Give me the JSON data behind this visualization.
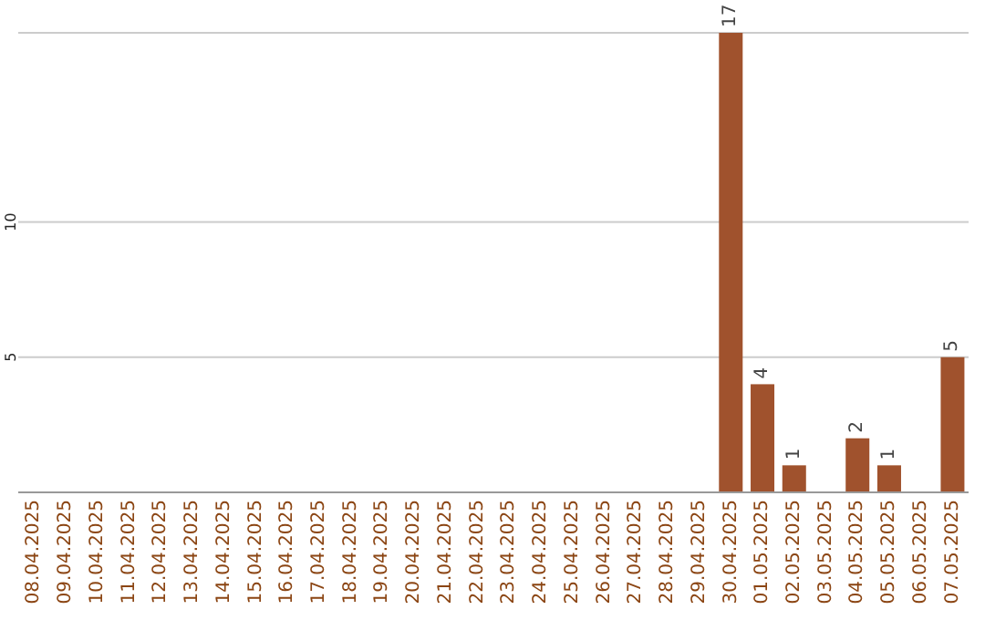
{
  "chart_data": {
    "type": "bar",
    "categories": [
      "08.04.2025",
      "09.04.2025",
      "10.04.2025",
      "11.04.2025",
      "12.04.2025",
      "13.04.2025",
      "14.04.2025",
      "15.04.2025",
      "16.04.2025",
      "17.04.2025",
      "18.04.2025",
      "19.04.2025",
      "20.04.2025",
      "21.04.2025",
      "22.04.2025",
      "23.04.2025",
      "24.04.2025",
      "25.04.2025",
      "26.04.2025",
      "27.04.2025",
      "28.04.2025",
      "29.04.2025",
      "30.04.2025",
      "01.05.2025",
      "02.05.2025",
      "03.05.2025",
      "04.05.2025",
      "05.05.2025",
      "06.05.2025",
      "07.05.2025"
    ],
    "values": [
      0,
      0,
      0,
      0,
      0,
      0,
      0,
      0,
      0,
      0,
      0,
      0,
      0,
      0,
      0,
      0,
      0,
      0,
      0,
      0,
      0,
      0,
      17,
      4,
      1,
      0,
      2,
      1,
      0,
      5
    ],
    "value_labels": [
      null,
      null,
      null,
      null,
      null,
      null,
      null,
      null,
      null,
      null,
      null,
      null,
      null,
      null,
      null,
      null,
      null,
      null,
      null,
      null,
      null,
      null,
      "17",
      "4",
      "1",
      null,
      "2",
      "1",
      null,
      "5"
    ],
    "color": "#a0522d",
    "ylim": [
      0,
      17
    ],
    "yticks": [
      5,
      10
    ],
    "grid": "y"
  }
}
